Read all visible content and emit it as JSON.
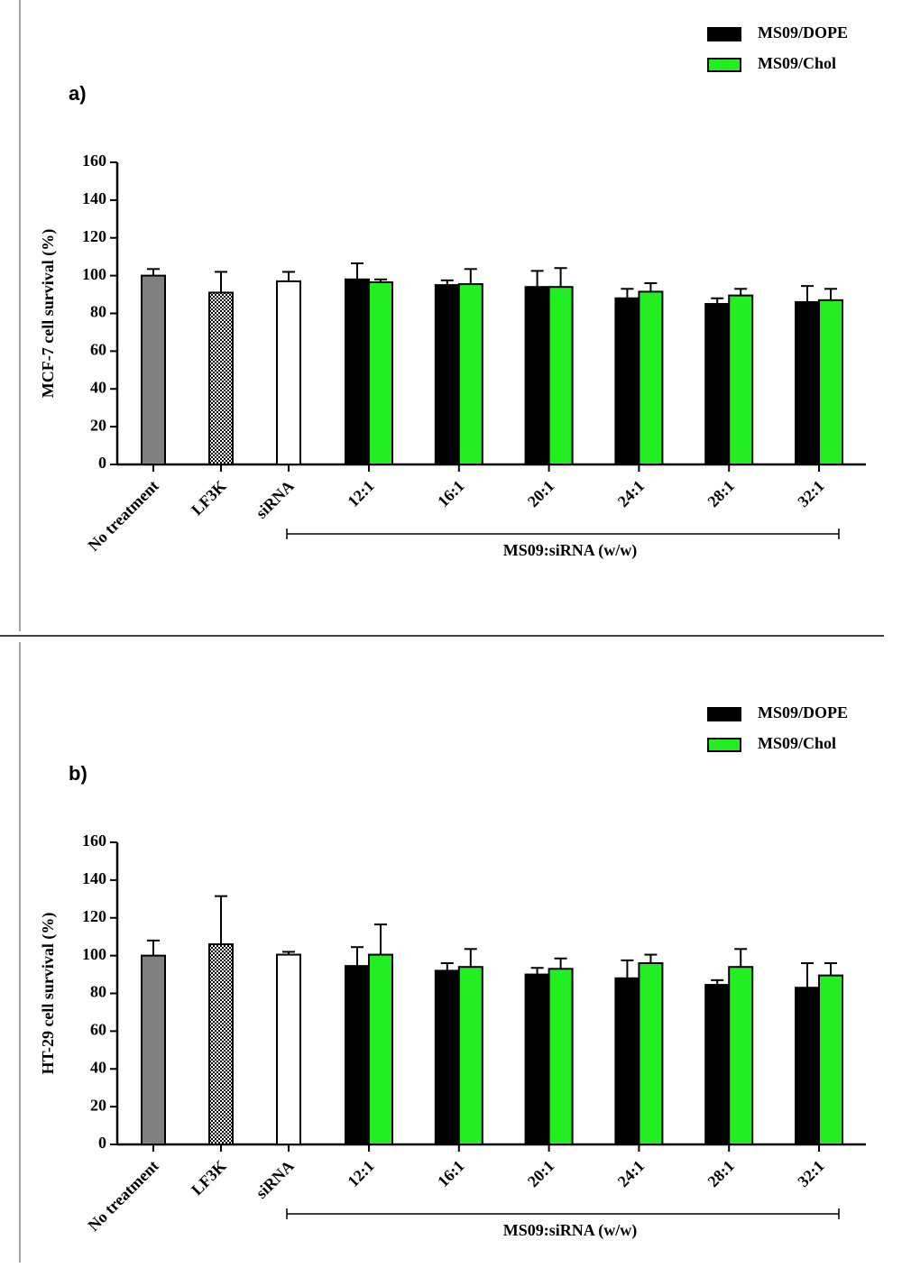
{
  "chart_data": [
    {
      "type": "bar",
      "panel": "a)",
      "ylabel": "MCF-7 cell survival (%)",
      "ylim": [
        0,
        160
      ],
      "yticks": [
        0,
        20,
        40,
        60,
        80,
        100,
        120,
        140,
        160
      ],
      "controls": {
        "categories": [
          "No treatment",
          "LF3K",
          "siRNA"
        ],
        "values": [
          100,
          91,
          97
        ],
        "errors": [
          3.5,
          11,
          5
        ],
        "colors": [
          "#808080",
          "#000000",
          "#ffffff"
        ],
        "hatch": [
          null,
          "checkered",
          null
        ]
      },
      "group_label": "MS09:siRNA (w/w)",
      "categories": [
        "12:1",
        "16:1",
        "20:1",
        "24:1",
        "28:1",
        "32:1"
      ],
      "series": [
        {
          "name": "MS09/DOPE",
          "color": "#000000",
          "values": [
            98,
            95,
            94,
            88,
            85,
            86
          ],
          "errors": [
            8.5,
            2.5,
            8.5,
            5,
            3,
            8.5
          ]
        },
        {
          "name": "MS09/Chol",
          "color": "#22ee22",
          "values": [
            96.5,
            95.5,
            94,
            91.5,
            89.5,
            87
          ],
          "errors": [
            1.5,
            8,
            10,
            4.5,
            3.5,
            6
          ]
        }
      ]
    },
    {
      "type": "bar",
      "panel": "b)",
      "ylabel": "HT-29 cell survival (%)",
      "ylim": [
        0,
        160
      ],
      "yticks": [
        0,
        20,
        40,
        60,
        80,
        100,
        120,
        140,
        160
      ],
      "controls": {
        "categories": [
          "No treatment",
          "LF3K",
          "siRNA"
        ],
        "values": [
          100,
          106,
          100.5
        ],
        "errors": [
          8,
          25.5,
          1.5
        ],
        "colors": [
          "#808080",
          "#000000",
          "#ffffff"
        ],
        "hatch": [
          null,
          "checkered",
          null
        ]
      },
      "group_label": "MS09:siRNA (w/w)",
      "categories": [
        "12:1",
        "16:1",
        "20:1",
        "24:1",
        "28:1",
        "32:1"
      ],
      "series": [
        {
          "name": "MS09/DOPE",
          "color": "#000000",
          "values": [
            94.5,
            92,
            90,
            88,
            84.5,
            83
          ],
          "errors": [
            10,
            4,
            3.5,
            9.5,
            2.5,
            13
          ]
        },
        {
          "name": "MS09/Chol",
          "color": "#22ee22",
          "values": [
            100.5,
            94,
            93,
            96,
            94,
            89.5
          ],
          "errors": [
            16,
            9.5,
            5.5,
            4.5,
            9.5,
            6.5
          ]
        }
      ]
    }
  ]
}
